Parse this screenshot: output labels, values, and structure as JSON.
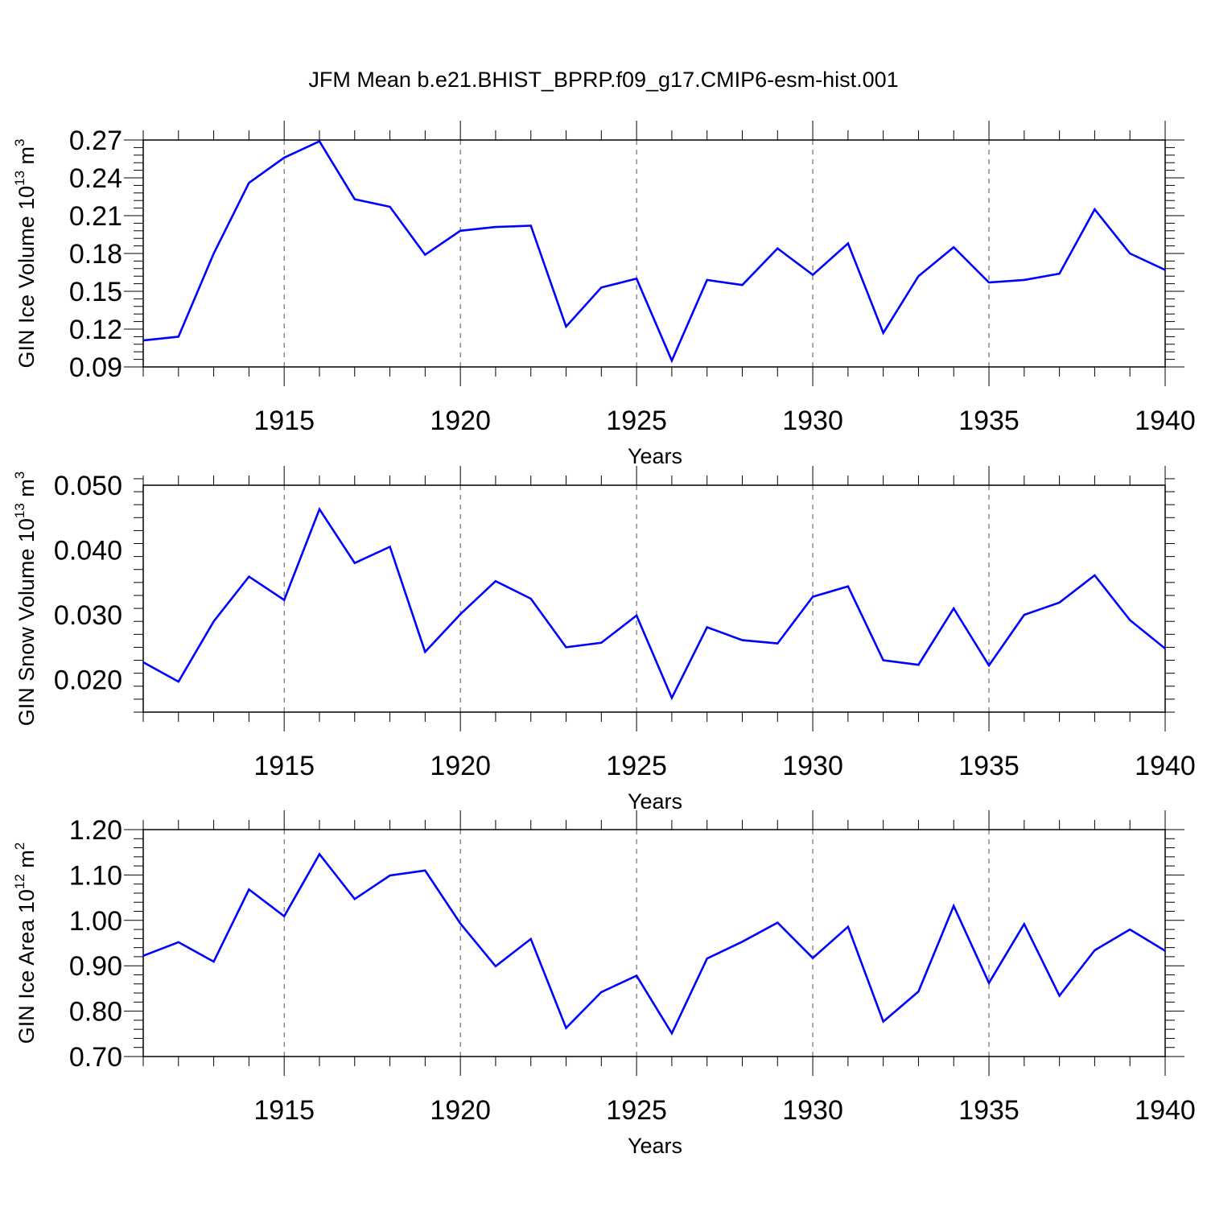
{
  "figure": {
    "title": "JFM Mean b.e21.BHIST_BPRP.f09_g17.CMIP6-esm-hist.001"
  },
  "chart_data": [
    {
      "type": "line",
      "xlabel": "Years",
      "ylabel": {
        "text": "GIN Ice Volume 10",
        "sup1": "13",
        "mid": " m",
        "sup2": "3"
      },
      "xlim": [
        1911,
        1940
      ],
      "ylim": [
        0.09,
        0.27
      ],
      "xticks": [
        "1915",
        "1920",
        "1925",
        "1930",
        "1935",
        "1940"
      ],
      "yticks": [
        "0.09",
        "0.12",
        "0.15",
        "0.18",
        "0.21",
        "0.24",
        "0.27"
      ],
      "grid": "vertical-dashed",
      "line_color": "#0000ff",
      "x": [
        1911,
        1912,
        1913,
        1914,
        1915,
        1916,
        1917,
        1918,
        1919,
        1920,
        1921,
        1922,
        1923,
        1924,
        1925,
        1926,
        1927,
        1928,
        1929,
        1930,
        1931,
        1932,
        1933,
        1934,
        1935,
        1936,
        1937,
        1938,
        1939,
        1940
      ],
      "values": [
        0.111,
        0.114,
        0.18,
        0.236,
        0.256,
        0.269,
        0.223,
        0.217,
        0.179,
        0.198,
        0.201,
        0.202,
        0.122,
        0.153,
        0.16,
        0.095,
        0.159,
        0.155,
        0.184,
        0.163,
        0.188,
        0.117,
        0.162,
        0.185,
        0.157,
        0.159,
        0.164,
        0.215,
        0.18,
        0.167
      ]
    },
    {
      "type": "line",
      "xlabel": "Years",
      "ylabel": {
        "text": "GIN Snow Volume 10",
        "sup1": "13",
        "mid": " m",
        "sup2": "3"
      },
      "xlim": [
        1911,
        1940
      ],
      "ylim": [
        0.015,
        0.05
      ],
      "xticks": [
        "1915",
        "1920",
        "1925",
        "1930",
        "1935",
        "1940"
      ],
      "yticks": [
        "0.020",
        "0.030",
        "0.040",
        "0.050"
      ],
      "grid": "vertical-dashed",
      "line_color": "#0000ff",
      "x": [
        1911,
        1912,
        1913,
        1914,
        1915,
        1916,
        1917,
        1918,
        1919,
        1920,
        1921,
        1922,
        1923,
        1924,
        1925,
        1926,
        1927,
        1928,
        1929,
        1930,
        1931,
        1932,
        1933,
        1934,
        1935,
        1936,
        1937,
        1938,
        1939,
        1940
      ],
      "values": [
        0.0227,
        0.0197,
        0.029,
        0.0359,
        0.0323,
        0.0463,
        0.038,
        0.0405,
        0.0243,
        0.0301,
        0.0352,
        0.0325,
        0.025,
        0.0257,
        0.0299,
        0.0172,
        0.0281,
        0.0261,
        0.0256,
        0.0328,
        0.0344,
        0.023,
        0.0223,
        0.031,
        0.0222,
        0.03,
        0.0319,
        0.0361,
        0.0292,
        0.0248
      ]
    },
    {
      "type": "line",
      "xlabel": "Years",
      "ylabel": {
        "text": "GIN Ice Area 10",
        "sup1": "12",
        "mid": " m",
        "sup2": "2"
      },
      "xlim": [
        1911,
        1940
      ],
      "ylim": [
        0.7,
        1.2
      ],
      "xticks": [
        "1915",
        "1920",
        "1925",
        "1930",
        "1935",
        "1940"
      ],
      "yticks": [
        "0.70",
        "0.80",
        "0.90",
        "1.00",
        "1.10",
        "1.20"
      ],
      "grid": "vertical-dashed",
      "line_color": "#0000ff",
      "x": [
        1911,
        1912,
        1913,
        1914,
        1915,
        1916,
        1917,
        1918,
        1919,
        1920,
        1921,
        1922,
        1923,
        1924,
        1925,
        1926,
        1927,
        1928,
        1929,
        1930,
        1931,
        1932,
        1933,
        1934,
        1935,
        1936,
        1937,
        1938,
        1939,
        1940
      ],
      "values": [
        0.922,
        0.952,
        0.909,
        1.068,
        1.009,
        1.146,
        1.047,
        1.099,
        1.11,
        0.993,
        0.899,
        0.959,
        0.763,
        0.842,
        0.878,
        0.751,
        0.916,
        0.953,
        0.995,
        0.917,
        0.986,
        0.777,
        0.843,
        1.032,
        0.862,
        0.992,
        0.834,
        0.934,
        0.98,
        0.933
      ]
    }
  ]
}
